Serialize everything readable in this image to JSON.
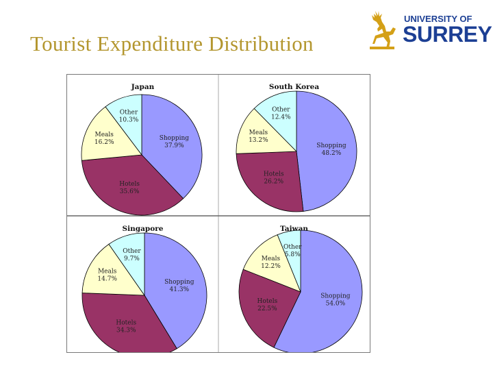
{
  "slide": {
    "title": "Tourist Expenditure Distribution"
  },
  "logo": {
    "line1": "UNIVERSITY OF",
    "line2": "SURREY",
    "color": "#1c3f94",
    "stag_color": "#d4a017"
  },
  "colors": {
    "title": "#b3962e",
    "Shopping": "#9999ff",
    "Hotels": "#993366",
    "Meals": "#ffffcc",
    "Other": "#ccffff"
  },
  "chart_data": [
    {
      "type": "pie",
      "title": "Japan",
      "slices": [
        {
          "name": "Shopping",
          "value": 37.9,
          "label": "Shopping\n37.9%"
        },
        {
          "name": "Hotels",
          "value": 35.6,
          "label": "Hotels\n35.6%"
        },
        {
          "name": "Meals",
          "value": 16.2,
          "label": "Meals\n16.2%"
        },
        {
          "name": "Other",
          "value": 10.3,
          "label": "Other\n10.3%"
        }
      ]
    },
    {
      "type": "pie",
      "title": "South Korea",
      "slices": [
        {
          "name": "Shopping",
          "value": 48.2,
          "label": "Shopping\n48.2%"
        },
        {
          "name": "Hotels",
          "value": 26.2,
          "label": "Hotels\n26.2%"
        },
        {
          "name": "Meals",
          "value": 13.2,
          "label": "Meals\n13.2%"
        },
        {
          "name": "Other",
          "value": 12.4,
          "label": "Other\n12.4%"
        }
      ]
    },
    {
      "type": "pie",
      "title": "Singapore",
      "slices": [
        {
          "name": "Shopping",
          "value": 41.3,
          "label": "Shopping\n41.3%"
        },
        {
          "name": "Hotels",
          "value": 34.3,
          "label": "Hotels\n34.3%"
        },
        {
          "name": "Meals",
          "value": 14.7,
          "label": "Meals\n14.7%"
        },
        {
          "name": "Other",
          "value": 9.7,
          "label": "Other\n9.7%"
        }
      ]
    },
    {
      "type": "pie",
      "title": "Taiwan",
      "slices": [
        {
          "name": "Shopping",
          "value": 54.0,
          "label": "Shopping\n54.0%"
        },
        {
          "name": "Hotels",
          "value": 22.5,
          "label": "Hotels\n22.5%"
        },
        {
          "name": "Meals",
          "value": 12.2,
          "label": "Meals\n12.2%"
        },
        {
          "name": "Other",
          "value": 5.8,
          "label": "Other\n5.8%"
        }
      ]
    }
  ]
}
